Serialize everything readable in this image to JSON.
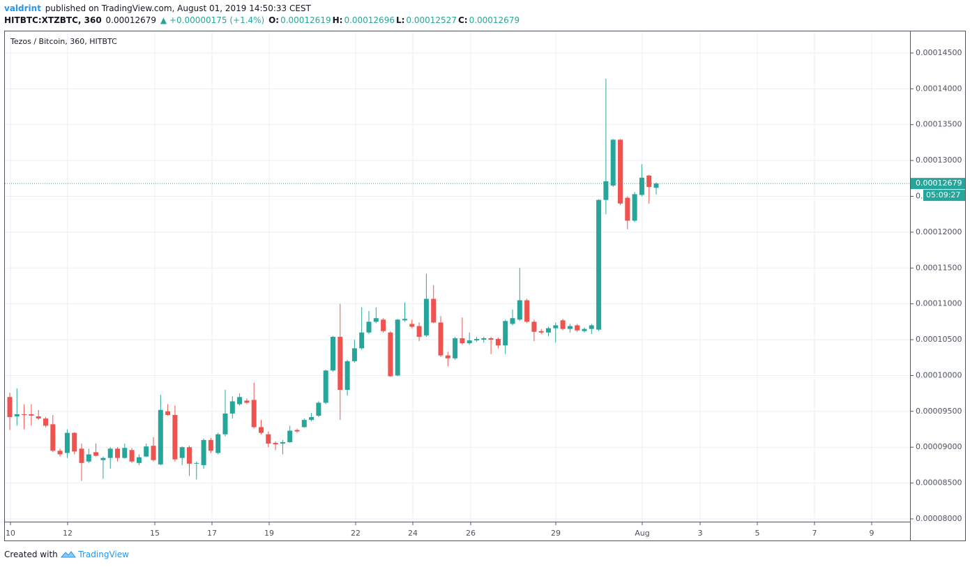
{
  "header": {
    "author": "valdrint",
    "published": "published on TradingView.com, August 01, 2019 14:50:33 CEST",
    "symbol": "HITBTC:XTZBTC, 360",
    "last": "0.00012679",
    "change": "▲ +0.00000175 (+1.4%)",
    "quotes": [
      {
        "label": "O:",
        "value": "0.00012619"
      },
      {
        "label": "H:",
        "value": "0.00012696"
      },
      {
        "label": "L:",
        "value": "0.00012527"
      },
      {
        "label": "C:",
        "value": "0.00012679"
      }
    ]
  },
  "footer": {
    "text": "Created with",
    "brand": "TradingView"
  },
  "chart_data": {
    "type": "candlestick",
    "title": "Tezos / Bitcoin, 360, HITBTC",
    "x_labels": [
      "10",
      "12",
      "15",
      "17",
      "19",
      "22",
      "24",
      "26",
      "29",
      "Aug",
      "3",
      "5",
      "7",
      "9"
    ],
    "up_color": "#26a69a",
    "down_color": "#ef5350",
    "grid": true,
    "countdown": "05:09:27",
    "ylim": [
      7.961e-05,
      0.00014811
    ],
    "yticks": [
      {
        "value": 8e-05,
        "label": "0.00008000"
      },
      {
        "value": 8.5e-05,
        "label": "0.00008500"
      },
      {
        "value": 9e-05,
        "label": "0.00009000"
      },
      {
        "value": 9.5e-05,
        "label": "0.00009500"
      },
      {
        "value": 0.0001,
        "label": "0.00010000"
      },
      {
        "value": 0.000105,
        "label": "0.00010500"
      },
      {
        "value": 0.00011,
        "label": "0.00011000"
      },
      {
        "value": 0.000115,
        "label": "0.00011500"
      },
      {
        "value": 0.00012,
        "label": "0.00012000"
      },
      {
        "value": 0.000125,
        "label": "0.00012500"
      },
      {
        "value": 0.00013,
        "label": "0.00013000"
      },
      {
        "value": 0.000135,
        "label": "0.00013500"
      },
      {
        "value": 0.00014,
        "label": "0.00014000"
      },
      {
        "value": 0.000145,
        "label": "0.00014500"
      }
    ],
    "open": [
      9.7e-05,
      9.43e-05,
      9.46e-05,
      9.46e-05,
      9.43e-05,
      9.4e-05,
      9.32e-05,
      8.95e-05,
      8.92e-05,
      9.2e-05,
      8.98e-05,
      8.8e-05,
      8.93e-05,
      8.82e-05,
      8.85e-05,
      8.98e-05,
      8.85e-05,
      8.96e-05,
      8.78e-05,
      8.87e-05,
      9.02e-05,
      8.76e-05,
      9.5e-05,
      9.45e-05,
      8.85e-05,
      9e-05,
      8.77e-05,
      8.75e-05,
      9.1e-05,
      8.92e-05,
      9.18e-05,
      9.47e-05,
      9.6e-05,
      9.65e-05,
      9.66e-05,
      9.28e-05,
      9.18e-05,
      9.06e-05,
      9.05e-05,
      9.07e-05,
      9.24e-05,
      9.28e-05,
      9.38e-05,
      9.44e-05,
      9.62e-05,
      0.0001007,
      0.0001054,
      9.8e-05,
      0.000102,
      0.0001038,
      0.000106,
      0.0001075,
      0.0001078,
      0.000106,
      0.0001,
      0.0001077,
      0.0001072,
      0.0001069,
      0.0001056,
      0.0001107,
      0.0001074,
      0.0001028,
      0.0001024,
      0.0001052,
      0.0001045,
      0.0001049,
      0.000105,
      0.0001052,
      0.0001051,
      0.0001042,
      0.0001072,
      0.0001078,
      0.0001105,
      0.0001075,
      0.0001062,
      0.000106,
      0.0001066,
      0.0001077,
      0.0001065,
      0.000107,
      0.0001062,
      0.0001065,
      0.0001064,
      0.0001245,
      0.0001265,
      0.0001329,
      0.0001248,
      0.0001216,
      0.0001252,
      0.0001279,
      0.00012619
    ],
    "high": [
      9.76e-05,
      9.82e-05,
      9.6e-05,
      9.6e-05,
      9.52e-05,
      9.42e-05,
      9.45e-05,
      8.98e-05,
      9.25e-05,
      9.21e-05,
      9.05e-05,
      8.98e-05,
      9.05e-05,
      8.87e-05,
      9e-05,
      9e-05,
      9.05e-05,
      8.99e-05,
      8.9e-05,
      9.05e-05,
      9.14e-05,
      9.73e-05,
      9.6e-05,
      9.58e-05,
      9.01e-05,
      9.02e-05,
      8.8e-05,
      9.12e-05,
      9.13e-05,
      9.2e-05,
      9.8e-05,
      9.71e-05,
      9.75e-05,
      9.68e-05,
      9.9e-05,
      9.38e-05,
      9.22e-05,
      9.08e-05,
      9.1e-05,
      9.3e-05,
      9.26e-05,
      9.4e-05,
      9.48e-05,
      9.64e-05,
      0.0001008,
      0.0001055,
      0.00011,
      0.0001022,
      0.000105,
      0.0001095,
      0.000109,
      0.0001095,
      0.000108,
      0.0001062,
      0.0001079,
      0.0001102,
      0.0001078,
      0.0001074,
      0.0001142,
      0.0001126,
      0.0001083,
      0.0001033,
      0.0001054,
      0.0001081,
      0.000106,
      0.0001054,
      0.0001054,
      0.0001054,
      0.0001053,
      0.0001078,
      0.0001092,
      0.000115,
      0.0001107,
      0.0001078,
      0.0001065,
      0.0001068,
      0.0001074,
      0.0001079,
      0.0001072,
      0.0001072,
      0.0001067,
      0.0001072,
      0.0001246,
      0.0001414,
      0.000133,
      0.000133,
      0.000125,
      0.0001256,
      0.0001295,
      0.000128,
      0.00012696
    ],
    "low": [
      9.24e-05,
      9.3e-05,
      9.25e-05,
      9.3e-05,
      9.38e-05,
      9.28e-05,
      8.93e-05,
      8.87e-05,
      8.85e-05,
      8.9e-05,
      8.53e-05,
      8.78e-05,
      8.87e-05,
      8.56e-05,
      8.7e-05,
      8.8e-05,
      8.84e-05,
      8.78e-05,
      8.75e-05,
      8.86e-05,
      8.8e-05,
      8.75e-05,
      9.44e-05,
      8.8e-05,
      8.75e-05,
      8.6e-05,
      8.55e-05,
      8.7e-05,
      8.92e-05,
      8.9e-05,
      9.15e-05,
      9.4e-05,
      9.58e-05,
      9.6e-05,
      9.26e-05,
      9.18e-05,
      9e-05,
      8.96e-05,
      8.9e-05,
      9.06e-05,
      9.2e-05,
      9.27e-05,
      9.36e-05,
      9.42e-05,
      9.6e-05,
      0.0001005,
      9.38e-05,
      9.72e-05,
      0.0001018,
      0.0001036,
      0.0001058,
      0.0001073,
      0.000106,
      9.98e-05,
      9.99e-05,
      0.0001075,
      0.0001066,
      0.0001048,
      0.0001054,
      0.0001073,
      0.0001026,
      0.0001013,
      0.0001022,
      0.0001043,
      0.0001043,
      0.0001047,
      0.0001046,
      0.000103,
      0.0001038,
      0.000103,
      0.000107,
      0.0001076,
      0.0001073,
      0.0001048,
      0.0001058,
      0.0001055,
      0.0001046,
      0.0001063,
      0.000106,
      0.0001061,
      0.000106,
      0.0001058,
      0.0001062,
      0.0001225,
      0.0001263,
      0.0001238,
      0.0001204,
      0.0001214,
      0.000125,
      0.000124,
      0.00012527
    ],
    "close": [
      9.42e-05,
      9.46e-05,
      9.45e-05,
      9.44e-05,
      9.4e-05,
      9.3e-05,
      8.95e-05,
      8.9e-05,
      9.2e-05,
      8.94e-05,
      8.78e-05,
      8.9e-05,
      8.88e-05,
      8.85e-05,
      8.98e-05,
      8.85e-05,
      8.99e-05,
      8.8e-05,
      8.86e-05,
      9.01e-05,
      8.82e-05,
      9.52e-05,
      9.45e-05,
      8.83e-05,
      9e-05,
      8.77e-05,
      8.78e-05,
      9.1e-05,
      8.95e-05,
      9.18e-05,
      9.47e-05,
      9.64e-05,
      9.7e-05,
      9.62e-05,
      9.28e-05,
      9.2e-05,
      9.05e-05,
      9.04e-05,
      9.07e-05,
      9.23e-05,
      9.22e-05,
      9.38e-05,
      9.42e-05,
      9.62e-05,
      0.0001007,
      0.0001054,
      9.8e-05,
      0.000102,
      0.0001038,
      0.000106,
      0.0001075,
      0.000108,
      0.0001062,
      9.99e-05,
      0.0001078,
      0.0001079,
      0.0001068,
      0.0001054,
      0.0001107,
      0.0001074,
      0.0001028,
      0.0001024,
      0.0001052,
      0.0001045,
      0.0001049,
      0.0001051,
      0.0001052,
      0.000105,
      0.0001042,
      0.0001076,
      0.000108,
      0.0001105,
      0.0001075,
      0.0001061,
      0.000106,
      0.0001066,
      0.000107,
      0.0001065,
      0.0001069,
      0.0001063,
      0.0001065,
      0.000107,
      0.0001245,
      0.0001271,
      0.0001329,
      0.000124,
      0.0001216,
      0.0001253,
      0.0001276,
      0.0001263,
      0.00012679
    ]
  }
}
